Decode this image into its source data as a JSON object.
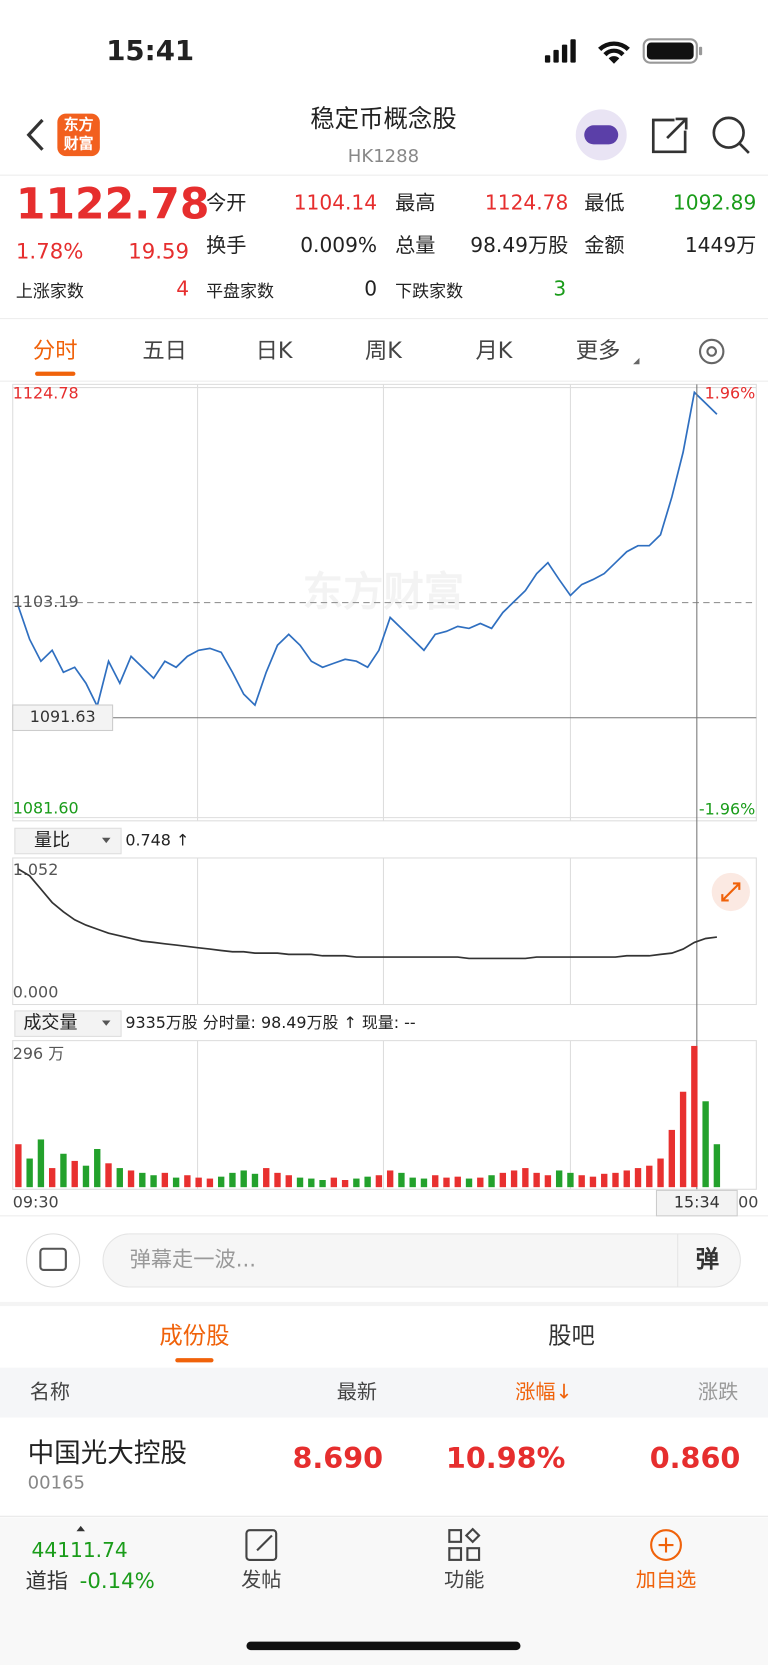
{
  "status_bar": {
    "time": "15:41"
  },
  "header": {
    "logo": [
      "东方",
      "财富"
    ],
    "title": "稳定币概念股",
    "code": "HK1288"
  },
  "quote": {
    "price": "1122.78",
    "change_pct": "1.78%",
    "change": "19.59",
    "fields": [
      {
        "label": "今开",
        "value": "1104.14"
      },
      {
        "label": "最高",
        "value": "1124.78"
      },
      {
        "label": "最低",
        "value": "1092.89"
      },
      {
        "label": "换手",
        "value": "0.009%"
      },
      {
        "label": "总量",
        "value": "98.49万股"
      },
      {
        "label": "金额",
        "value": "1449万"
      }
    ],
    "breadth": [
      {
        "label": "上涨家数",
        "value": "4"
      },
      {
        "label": "平盘家数",
        "value": "0"
      },
      {
        "label": "下跌家数",
        "value": "3"
      }
    ]
  },
  "tabs": [
    "分时",
    "五日",
    "日K",
    "周K",
    "月K",
    "更多"
  ],
  "intraday": {
    "type": "line",
    "color": "#2f6fc0",
    "watermark": "东方财富",
    "ylim": [
      1081.6,
      1124.78
    ],
    "yticks": [
      1124.78,
      1103.19,
      {
        "value": 1081.6,
        "label": "1081.60"
      }
    ],
    "pct_labels": [
      "1.96%",
      "-1.96%"
    ],
    "crosshair": {
      "value": 1091.63,
      "label": "1091.63",
      "time": "15:34"
    },
    "x_labels": [
      "09:30",
      "00"
    ],
    "values": [
      1102.8,
      1099.5,
      1097.3,
      1098.4,
      1096.2,
      1096.7,
      1095.1,
      1092.8,
      1097.3,
      1095.1,
      1097.8,
      1096.7,
      1095.6,
      1097.3,
      1096.7,
      1097.8,
      1098.4,
      1098.6,
      1098.2,
      1096.2,
      1094.0,
      1092.9,
      1096.2,
      1098.9,
      1100.0,
      1098.9,
      1097.3,
      1096.7,
      1097.1,
      1097.5,
      1097.3,
      1096.7,
      1098.4,
      1101.7,
      1100.6,
      1099.5,
      1098.4,
      1100.0,
      1100.3,
      1100.8,
      1100.6,
      1101.1,
      1100.6,
      1102.2,
      1103.3,
      1104.4,
      1106.1,
      1107.2,
      1105.5,
      1103.9,
      1105.0,
      1105.5,
      1106.1,
      1107.2,
      1108.3,
      1108.9,
      1108.9,
      1110.0,
      1113.8,
      1118.3,
      1124.3,
      1123.2,
      1122.1
    ]
  },
  "ratio": {
    "type": "line",
    "color": "#333333",
    "name": "量比",
    "current": "0.748 ↑",
    "ylim": [
      0,
      1.052
    ],
    "yticks": [
      1.052,
      {
        "value": 0,
        "label": "0.000"
      }
    ],
    "values": [
      1.0,
      0.95,
      0.85,
      0.75,
      0.68,
      0.62,
      0.58,
      0.55,
      0.52,
      0.5,
      0.48,
      0.46,
      0.45,
      0.44,
      0.43,
      0.42,
      0.41,
      0.4,
      0.39,
      0.38,
      0.38,
      0.37,
      0.37,
      0.37,
      0.36,
      0.36,
      0.36,
      0.35,
      0.35,
      0.35,
      0.34,
      0.34,
      0.34,
      0.34,
      0.34,
      0.34,
      0.34,
      0.34,
      0.34,
      0.34,
      0.33,
      0.33,
      0.33,
      0.33,
      0.33,
      0.33,
      0.34,
      0.34,
      0.34,
      0.34,
      0.34,
      0.34,
      0.34,
      0.34,
      0.35,
      0.35,
      0.35,
      0.36,
      0.37,
      0.4,
      0.45,
      0.48,
      0.49
    ]
  },
  "volume": {
    "type": "bar",
    "name": "成交量",
    "summary": "9335万股 分时量: 98.49万股 ↑ 现量: --",
    "up_color": "#e8302f",
    "down_color": "#23a12c",
    "ylim": [
      0,
      296
    ],
    "yticks": [
      {
        "value": 296,
        "label": "296 万"
      }
    ],
    "values": [
      90,
      60,
      100,
      40,
      70,
      55,
      45,
      80,
      50,
      40,
      35,
      30,
      25,
      30,
      20,
      25,
      20,
      18,
      22,
      30,
      35,
      28,
      40,
      30,
      25,
      20,
      18,
      15,
      20,
      15,
      18,
      22,
      25,
      35,
      30,
      20,
      18,
      25,
      20,
      22,
      18,
      20,
      25,
      30,
      35,
      40,
      30,
      25,
      35,
      30,
      25,
      22,
      28,
      30,
      35,
      40,
      45,
      60,
      120,
      200,
      296,
      180,
      90
    ]
  },
  "comment": {
    "placeholder": "弹幕走一波...",
    "button": "弹"
  },
  "section_tabs": [
    "成份股",
    "股吧"
  ],
  "table": {
    "columns": [
      "名称",
      "最新",
      "涨幅↓",
      "涨跌"
    ],
    "rows": [
      {
        "name": "中国光大控股",
        "code": "00165",
        "cells": [
          "8.690",
          "10.98%",
          "0.860"
        ]
      }
    ]
  },
  "bottom_nav": {
    "index_value": "44111.74",
    "index_name": "道指",
    "index_change": "-0.14%",
    "items": [
      "发帖",
      "功能",
      "加自选"
    ]
  }
}
